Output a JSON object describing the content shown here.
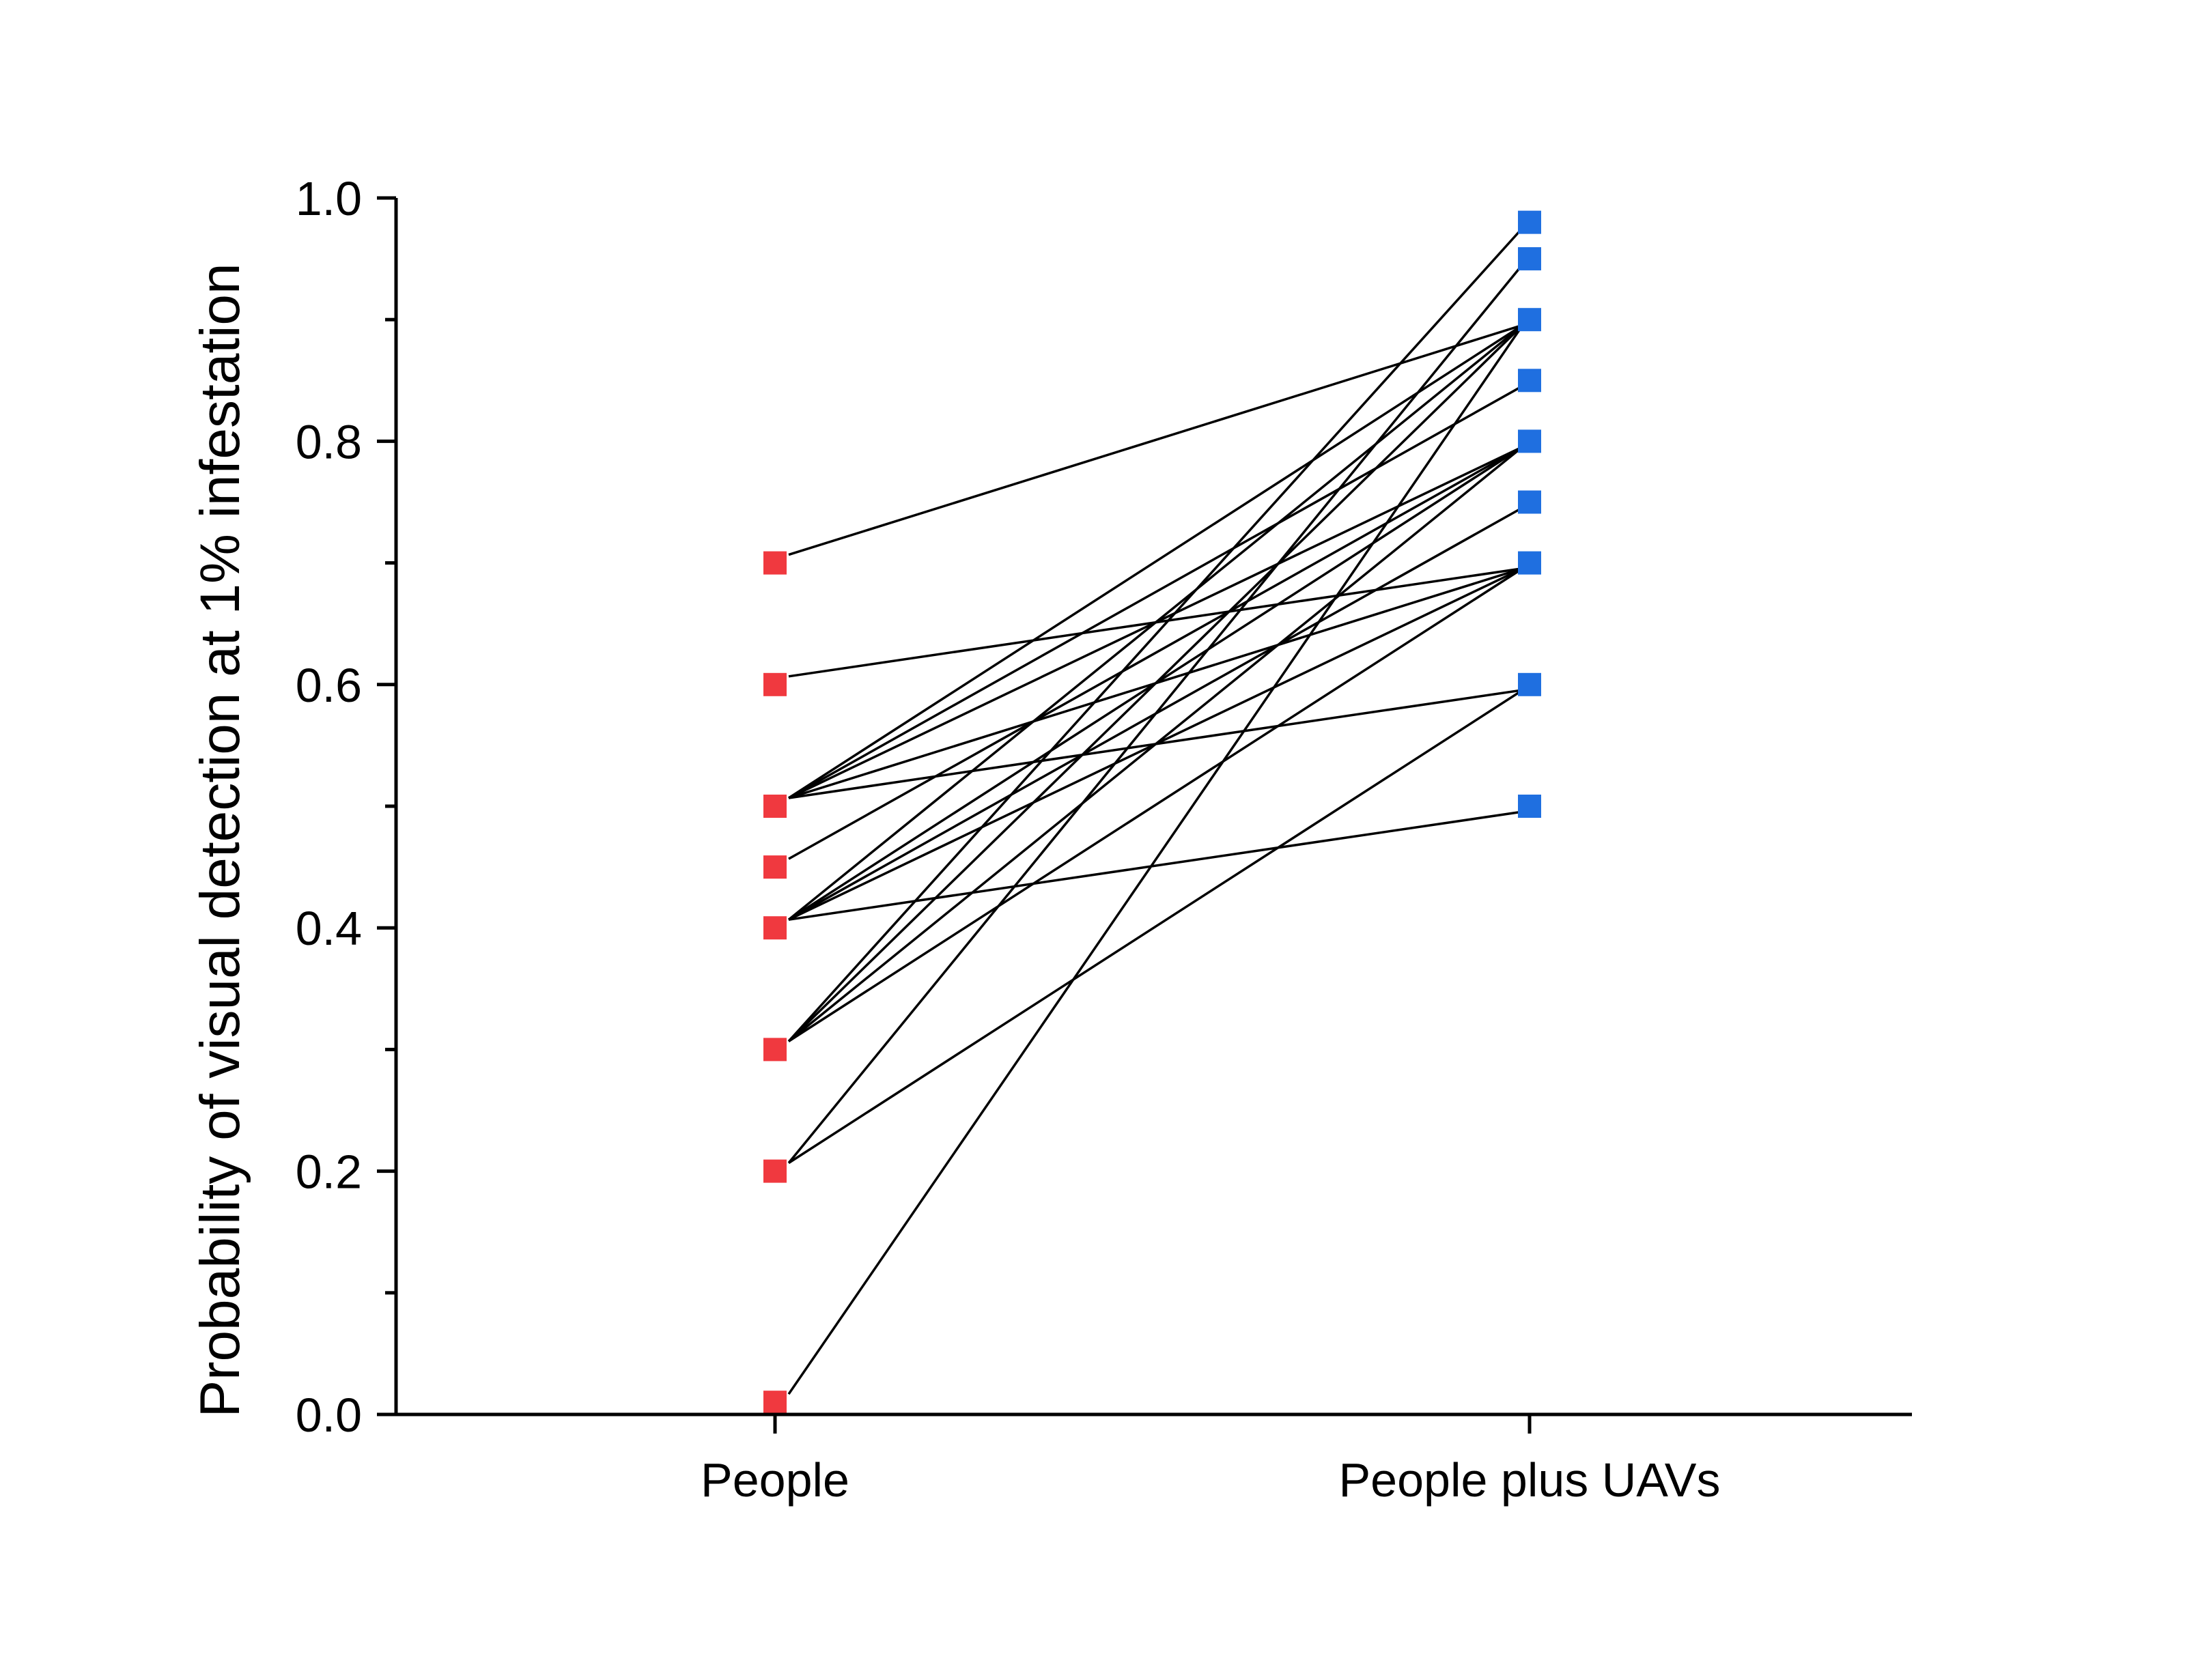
{
  "chart_data": {
    "type": "line",
    "title": "",
    "xlabel": "",
    "ylabel": "Probability of visual detection at 1% infestation",
    "categories": [
      "People",
      "People plus UAVs"
    ],
    "ylim": [
      0.0,
      1.0
    ],
    "yticks_major": [
      0.0,
      0.2,
      0.4,
      0.6,
      0.8,
      1.0
    ],
    "ytick_labels": [
      "0.0",
      "0.2",
      "0.4",
      "0.6",
      "0.8",
      "1.0"
    ],
    "yticks_minor": [
      0.1,
      0.3,
      0.5,
      0.7,
      0.9
    ],
    "grid": false,
    "legend": "none",
    "colors": {
      "people": "#f0393f",
      "people_plus_uavs": "#1f6fe0",
      "lines": "#000000"
    },
    "pairs": [
      {
        "people": 0.7,
        "people_plus_uavs": 0.9
      },
      {
        "people": 0.6,
        "people_plus_uavs": 0.7
      },
      {
        "people": 0.5,
        "people_plus_uavs": 0.9
      },
      {
        "people": 0.5,
        "people_plus_uavs": 0.85
      },
      {
        "people": 0.5,
        "people_plus_uavs": 0.8
      },
      {
        "people": 0.5,
        "people_plus_uavs": 0.7
      },
      {
        "people": 0.5,
        "people_plus_uavs": 0.6
      },
      {
        "people": 0.45,
        "people_plus_uavs": 0.8
      },
      {
        "people": 0.4,
        "people_plus_uavs": 0.9
      },
      {
        "people": 0.4,
        "people_plus_uavs": 0.8
      },
      {
        "people": 0.4,
        "people_plus_uavs": 0.75
      },
      {
        "people": 0.4,
        "people_plus_uavs": 0.7
      },
      {
        "people": 0.4,
        "people_plus_uavs": 0.5
      },
      {
        "people": 0.3,
        "people_plus_uavs": 0.98
      },
      {
        "people": 0.3,
        "people_plus_uavs": 0.9
      },
      {
        "people": 0.3,
        "people_plus_uavs": 0.8
      },
      {
        "people": 0.3,
        "people_plus_uavs": 0.7
      },
      {
        "people": 0.2,
        "people_plus_uavs": 0.95
      },
      {
        "people": 0.2,
        "people_plus_uavs": 0.6
      },
      {
        "people": 0.01,
        "people_plus_uavs": 0.9
      }
    ]
  }
}
